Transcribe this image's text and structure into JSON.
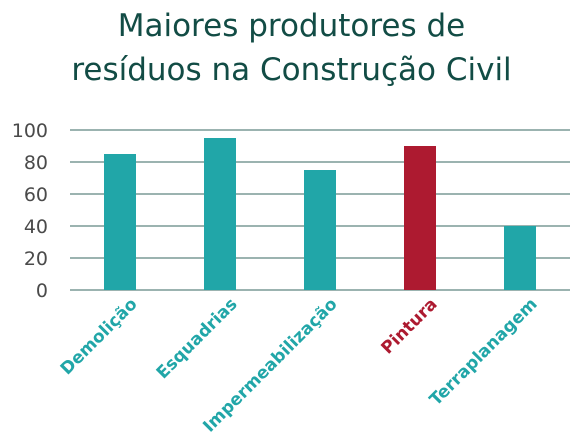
{
  "chart_data": {
    "type": "bar",
    "title_lines": [
      "Maiores produtores de",
      "resíduos na Construção Civil"
    ],
    "xlabel": "",
    "ylabel": "",
    "categories": [
      "Demolição",
      "Esquadrias",
      "Impermeabilização",
      "Pintura",
      "Terraplanagem"
    ],
    "values": [
      85,
      95,
      75,
      90,
      40
    ],
    "ylim": [
      0,
      100
    ],
    "yticks": [
      0,
      20,
      40,
      60,
      80,
      100
    ],
    "grid": true,
    "colors": {
      "default": "#21a6a8",
      "highlight": "#ad1a30",
      "title": "#124c45",
      "grid": "#7a9a96"
    },
    "highlight_category": "Pintura"
  }
}
